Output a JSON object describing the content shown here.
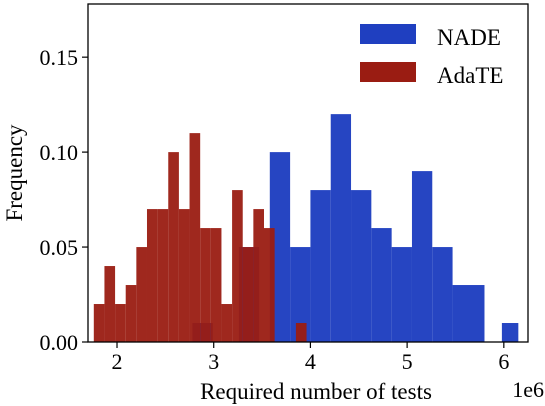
{
  "chart_data": {
    "type": "histogram",
    "xlabel": "Required number of tests",
    "ylabel": "Frequency",
    "x_offset_label": "1e6",
    "xlim": [
      1.7,
      6.25
    ],
    "ylim": [
      0,
      0.178
    ],
    "xticks": [
      2,
      3,
      4,
      5,
      6
    ],
    "xtick_labels": [
      "2",
      "3",
      "4",
      "5",
      "6"
    ],
    "yticks": [
      0.0,
      0.05,
      0.1,
      0.15
    ],
    "ytick_labels": [
      "0.00",
      "0.05",
      "0.10",
      "0.15"
    ],
    "legend": {
      "position": "top-right"
    },
    "series": [
      {
        "name": "NADE",
        "color": "#1f3fc0",
        "bins": [
          {
            "x0": 2.78,
            "x1": 2.99,
            "y": 0.01
          },
          {
            "x0": 3.26,
            "x1": 3.47,
            "y": 0.05
          },
          {
            "x0": 3.58,
            "x1": 3.79,
            "y": 0.1
          },
          {
            "x0": 3.79,
            "x1": 4.0,
            "y": 0.05
          },
          {
            "x0": 4.0,
            "x1": 4.21,
            "y": 0.08
          },
          {
            "x0": 4.21,
            "x1": 4.42,
            "y": 0.12
          },
          {
            "x0": 4.42,
            "x1": 4.63,
            "y": 0.08
          },
          {
            "x0": 4.63,
            "x1": 4.84,
            "y": 0.06
          },
          {
            "x0": 4.84,
            "x1": 5.05,
            "y": 0.05
          },
          {
            "x0": 5.05,
            "x1": 5.26,
            "y": 0.09
          },
          {
            "x0": 5.26,
            "x1": 5.47,
            "y": 0.05
          },
          {
            "x0": 5.47,
            "x1": 5.8,
            "y": 0.03
          },
          {
            "x0": 5.98,
            "x1": 6.15,
            "y": 0.01
          }
        ]
      },
      {
        "name": "AdaTE",
        "color": "#9a1c12",
        "bins": [
          {
            "x0": 1.76,
            "x1": 1.87,
            "y": 0.02
          },
          {
            "x0": 1.87,
            "x1": 1.98,
            "y": 0.04
          },
          {
            "x0": 1.98,
            "x1": 2.09,
            "y": 0.02
          },
          {
            "x0": 2.09,
            "x1": 2.2,
            "y": 0.03
          },
          {
            "x0": 2.2,
            "x1": 2.31,
            "y": 0.05
          },
          {
            "x0": 2.31,
            "x1": 2.42,
            "y": 0.07
          },
          {
            "x0": 2.42,
            "x1": 2.53,
            "y": 0.07
          },
          {
            "x0": 2.53,
            "x1": 2.64,
            "y": 0.1
          },
          {
            "x0": 2.64,
            "x1": 2.75,
            "y": 0.07
          },
          {
            "x0": 2.75,
            "x1": 2.86,
            "y": 0.11
          },
          {
            "x0": 2.86,
            "x1": 2.97,
            "y": 0.06
          },
          {
            "x0": 2.97,
            "x1": 3.08,
            "y": 0.06
          },
          {
            "x0": 3.08,
            "x1": 3.19,
            "y": 0.02
          },
          {
            "x0": 3.19,
            "x1": 3.3,
            "y": 0.08
          },
          {
            "x0": 3.3,
            "x1": 3.41,
            "y": 0.05
          },
          {
            "x0": 3.41,
            "x1": 3.52,
            "y": 0.07
          },
          {
            "x0": 3.52,
            "x1": 3.63,
            "y": 0.06
          },
          {
            "x0": 3.85,
            "x1": 3.96,
            "y": 0.01
          }
        ]
      }
    ]
  }
}
